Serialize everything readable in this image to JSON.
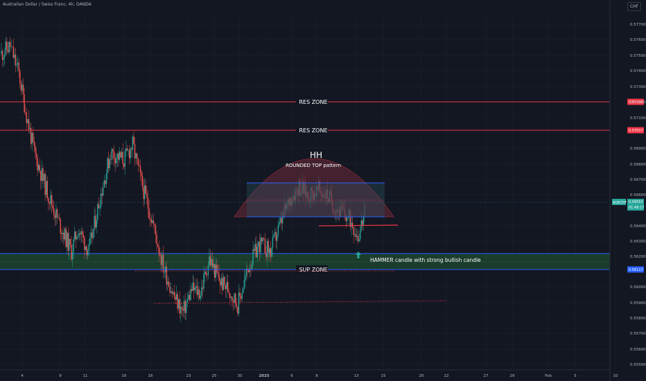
{
  "header": {
    "title": "Australian Dollar / Swiss Franc, 4h, OANDA",
    "currency_button": "CHF"
  },
  "colors": {
    "background": "#131722",
    "grid": "#1e222d",
    "bull": "#26a69a",
    "bear": "#ef5350",
    "resistance": "#f23645",
    "support": "#2962ff",
    "support_zone_fill": "#1d4a30",
    "rounded_top_fill": "#6b2a3a",
    "text": "#ffffff",
    "axis_text": "#b2b5be"
  },
  "chart_data": {
    "type": "candlestick",
    "x_tick_labels": [
      "4",
      "9",
      "11",
      "16",
      "18",
      "23",
      "25",
      "30",
      "2025",
      "6",
      "8",
      "13",
      "15",
      "20",
      "22",
      "27",
      "29",
      "Feb",
      "5",
      "10"
    ],
    "y_tick_labels": [
      "0.57700",
      "0.57600",
      "0.57500",
      "0.57400",
      "0.57300",
      "0.57200",
      "0.57100",
      "0.56900",
      "0.56800",
      "0.56700",
      "0.56600",
      "0.56400",
      "0.56300",
      "0.56200",
      "0.56000",
      "0.55900",
      "0.55800",
      "0.55700",
      "0.55600",
      "0.55500"
    ],
    "ylim": [
      0.5548,
      0.5782
    ],
    "levels": [
      {
        "label": "RES ZONE",
        "price_label": "0.57200",
        "kind": "resistance"
      },
      {
        "label": "RES ZONE",
        "price_label": "0.57017",
        "kind": "resistance"
      },
      {
        "label": "SUP ZONE",
        "price_label": "0.56117",
        "kind": "support"
      }
    ],
    "current_price": {
      "symbol": "AUDCHF",
      "value": "0.56553",
      "countdown": "01:48:17"
    },
    "annotations": {
      "hh": "HH",
      "pattern": "ROUNDED TOP pattern",
      "hammer": "HAMMER candle with strong bullish candle"
    }
  }
}
